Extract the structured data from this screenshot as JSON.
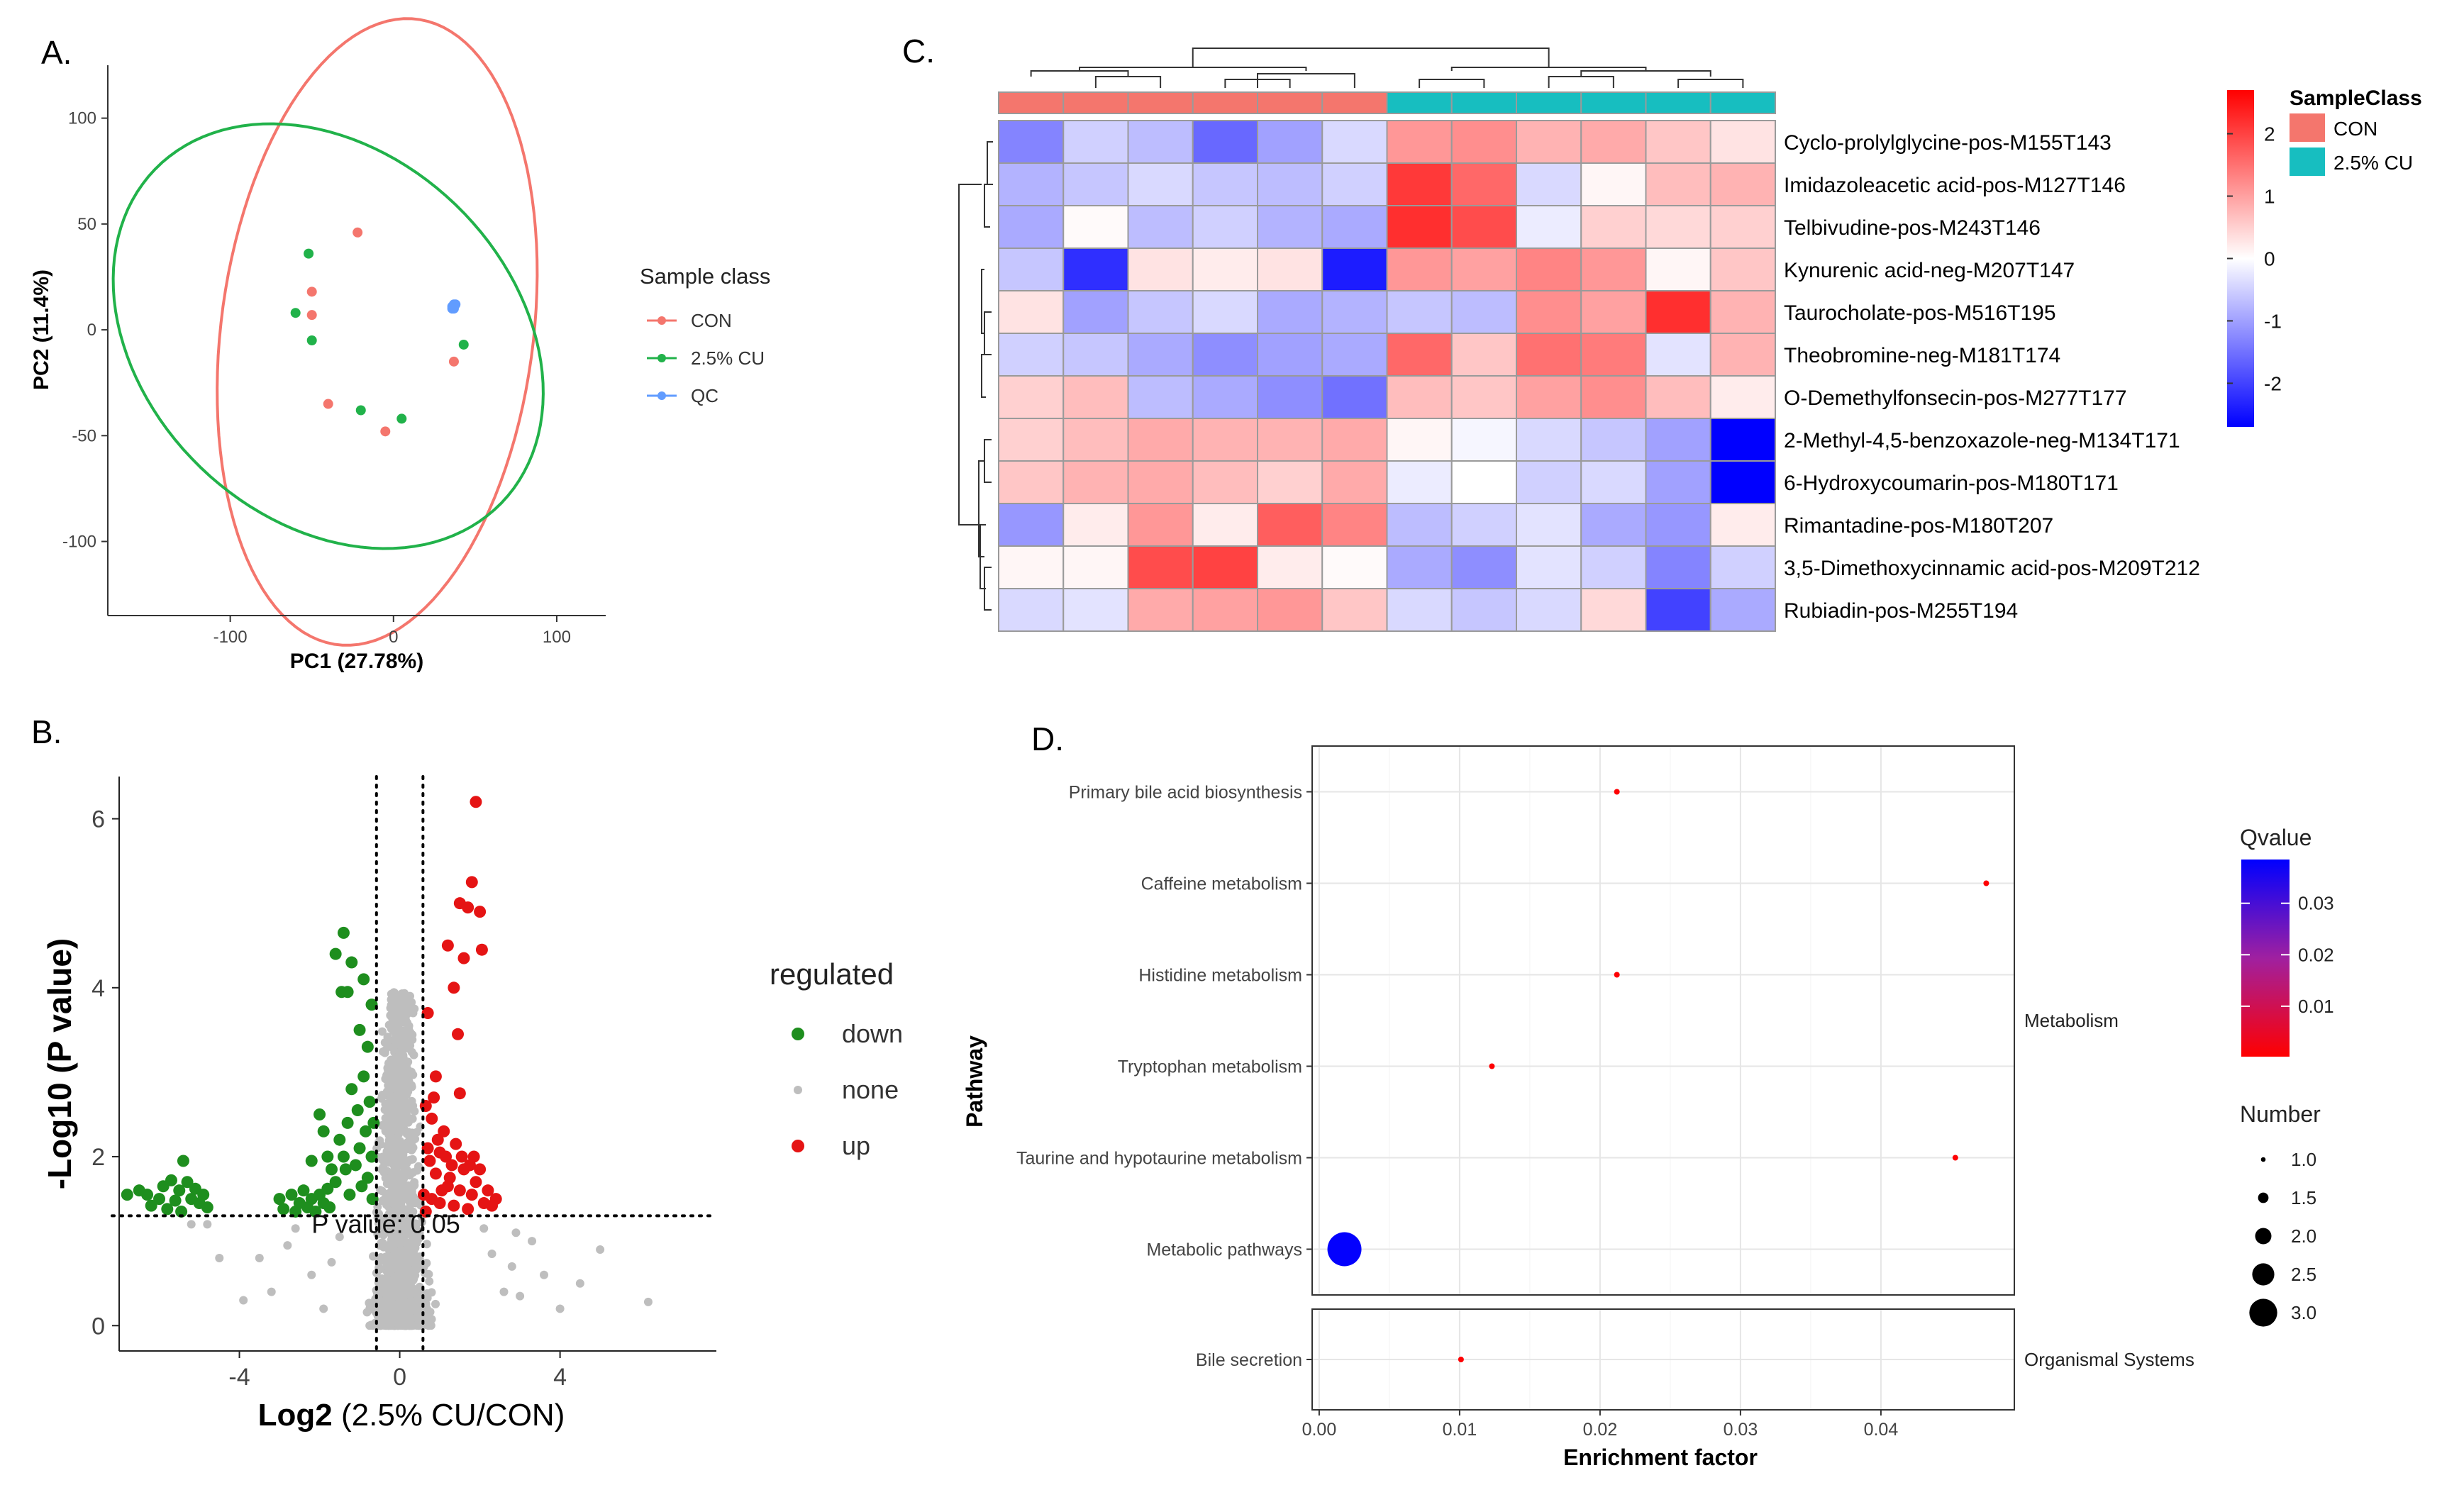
{
  "chart_data": [
    {
      "panel": "A.",
      "type": "scatter",
      "xlabel": "PC1 (27.78%)",
      "ylabel": "PC2 (11.4%)",
      "xlim": [
        -175,
        130
      ],
      "ylim": [
        -135,
        125
      ],
      "xticks": [
        -100,
        0,
        100
      ],
      "yticks": [
        100,
        50,
        0,
        -50,
        -100
      ],
      "legend_title": "Sample class",
      "series": [
        {
          "name": "CON",
          "color": "#F4766D",
          "points": [
            [
              -22,
              46
            ],
            [
              -50,
              18
            ],
            [
              -50,
              7
            ],
            [
              -40,
              -35
            ],
            [
              -5,
              -48
            ],
            [
              37,
              -15
            ]
          ]
        },
        {
          "name": "2.5% CU",
          "color": "#21B24A",
          "points": [
            [
              -52,
              36
            ],
            [
              -60,
              8
            ],
            [
              -50,
              -5
            ],
            [
              -20,
              -38
            ],
            [
              5,
              -42
            ],
            [
              43,
              -7
            ]
          ]
        },
        {
          "name": "QC",
          "color": "#619CFF",
          "points": [
            [
              36,
              11
            ],
            [
              37,
              12
            ],
            [
              38,
              12
            ],
            [
              36,
              10
            ],
            [
              37,
              10
            ]
          ]
        }
      ],
      "ellipses": [
        {
          "name": "CON",
          "color": "#F4766D",
          "cx": -10,
          "cy": -1,
          "rx": 150,
          "ry": 95,
          "angle": 78
        },
        {
          "name": "2.5% CU",
          "color": "#21B24A",
          "cx": -40,
          "cy": -3,
          "rx": 137,
          "ry": 93,
          "angle": -22
        }
      ]
    },
    {
      "panel": "B.",
      "type": "scatter",
      "subtype": "volcano",
      "xlabel_bold": "Log2",
      "xlabel_rest": " (2.5% CU/CON)",
      "ylabel": "-Log10 (P value)",
      "xlim": [
        -7,
        7.9
      ],
      "ylim": [
        -0.3,
        6.5
      ],
      "xticks": [
        -4,
        0,
        4
      ],
      "yticks": [
        0,
        2,
        4,
        6
      ],
      "vlines": [
        -0.58,
        0.58
      ],
      "hline": 1.3,
      "annotation": "P value: 0.05",
      "legend_title": "regulated",
      "colors": {
        "down": "#1E8E1E",
        "none": "#BEBEBE",
        "up": "#E51414"
      },
      "legend": [
        "down",
        "none",
        "up"
      ],
      "series": [
        {
          "name": "down",
          "points": [
            [
              -6.8,
              1.55
            ],
            [
              -6.5,
              1.6
            ],
            [
              -6.3,
              1.55
            ],
            [
              -6.2,
              1.42
            ],
            [
              -6.0,
              1.5
            ],
            [
              -5.9,
              1.65
            ],
            [
              -5.8,
              1.38
            ],
            [
              -5.7,
              1.72
            ],
            [
              -5.6,
              1.48
            ],
            [
              -5.5,
              1.6
            ],
            [
              -5.45,
              1.35
            ],
            [
              -5.4,
              1.95
            ],
            [
              -5.3,
              1.7
            ],
            [
              -5.2,
              1.5
            ],
            [
              -5.1,
              1.62
            ],
            [
              -5.0,
              1.45
            ],
            [
              -4.9,
              1.55
            ],
            [
              -4.8,
              1.4
            ],
            [
              -3.0,
              1.5
            ],
            [
              -2.9,
              1.38
            ],
            [
              -2.7,
              1.55
            ],
            [
              -2.6,
              1.35
            ],
            [
              -2.5,
              1.45
            ],
            [
              -2.4,
              1.6
            ],
            [
              -2.3,
              1.4
            ],
            [
              -2.2,
              1.5
            ],
            [
              -2.1,
              1.35
            ],
            [
              -2.0,
              1.55
            ],
            [
              -1.9,
              1.45
            ],
            [
              -1.8,
              1.62
            ],
            [
              -1.75,
              1.4
            ],
            [
              -1.6,
              1.7
            ],
            [
              -1.5,
              2.2
            ],
            [
              -1.4,
              2.0
            ],
            [
              -1.35,
              1.85
            ],
            [
              -1.3,
              2.4
            ],
            [
              -1.25,
              1.55
            ],
            [
              -1.2,
              2.8
            ],
            [
              -1.1,
              1.9
            ],
            [
              -1.05,
              2.55
            ],
            [
              -1.0,
              2.1
            ],
            [
              -0.95,
              1.65
            ],
            [
              -0.9,
              2.95
            ],
            [
              -0.85,
              2.3
            ],
            [
              -0.8,
              1.75
            ],
            [
              -0.75,
              2.65
            ],
            [
              -0.7,
              2.0
            ],
            [
              -0.68,
              1.5
            ],
            [
              -0.65,
              2.4
            ],
            [
              -1.6,
              4.4
            ],
            [
              -1.45,
              3.95
            ],
            [
              -1.3,
              3.95
            ],
            [
              -1.0,
              3.5
            ],
            [
              -0.9,
              4.1
            ],
            [
              -0.8,
              3.3
            ],
            [
              -0.7,
              3.8
            ],
            [
              -1.2,
              4.3
            ],
            [
              -2.0,
              2.5
            ],
            [
              -1.9,
              2.3
            ],
            [
              -1.8,
              2.0
            ],
            [
              -1.7,
              1.85
            ],
            [
              -2.2,
              1.95
            ],
            [
              -1.4,
              4.65
            ]
          ]
        },
        {
          "name": "up",
          "points": [
            [
              1.9,
              6.2
            ],
            [
              1.8,
              5.25
            ],
            [
              1.5,
              5.0
            ],
            [
              2.0,
              4.9
            ],
            [
              1.2,
              4.5
            ],
            [
              1.7,
              4.95
            ],
            [
              1.6,
              4.35
            ],
            [
              2.05,
              4.45
            ],
            [
              1.35,
              4.0
            ],
            [
              1.45,
              3.45
            ],
            [
              0.7,
              3.7
            ],
            [
              0.9,
              2.95
            ],
            [
              1.5,
              2.75
            ],
            [
              0.8,
              2.45
            ],
            [
              1.1,
              2.3
            ],
            [
              1.4,
              2.15
            ],
            [
              0.65,
              2.6
            ],
            [
              1.0,
              2.05
            ],
            [
              1.3,
              1.9
            ],
            [
              1.6,
              1.85
            ],
            [
              1.9,
              1.7
            ],
            [
              2.2,
              1.6
            ],
            [
              2.4,
              1.5
            ],
            [
              0.7,
              2.1
            ],
            [
              0.9,
              1.8
            ],
            [
              1.2,
              1.65
            ],
            [
              1.5,
              1.6
            ],
            [
              1.8,
              1.55
            ],
            [
              2.1,
              1.45
            ],
            [
              0.6,
              1.55
            ],
            [
              0.8,
              1.5
            ],
            [
              1.0,
              1.45
            ],
            [
              1.35,
              1.42
            ],
            [
              1.7,
              1.38
            ],
            [
              2.3,
              1.42
            ],
            [
              0.75,
              1.95
            ],
            [
              1.15,
              2.0
            ],
            [
              0.95,
              2.2
            ],
            [
              1.55,
              2.0
            ],
            [
              1.25,
              1.75
            ],
            [
              2.0,
              1.85
            ],
            [
              1.85,
              2.0
            ],
            [
              0.65,
              1.35
            ],
            [
              1.05,
              1.6
            ],
            [
              0.85,
              2.7
            ],
            [
              1.75,
              1.9
            ]
          ]
        }
      ],
      "none_cloud": {
        "count": 1400,
        "x_center": 0,
        "x_spread": 0.5,
        "y_max": 3.95
      },
      "none_scattered": [
        [
          -4.5,
          0.8
        ],
        [
          -5.2,
          1.2
        ],
        [
          -3.5,
          0.8
        ],
        [
          -3.2,
          0.4
        ],
        [
          -2.8,
          0.95
        ],
        [
          -2.6,
          1.15
        ],
        [
          -2.2,
          0.6
        ],
        [
          -1.9,
          0.2
        ],
        [
          -1.7,
          0.75
        ],
        [
          -1.5,
          1.05
        ],
        [
          2.3,
          0.85
        ],
        [
          2.6,
          0.4
        ],
        [
          2.8,
          0.7
        ],
        [
          3.0,
          0.35
        ],
        [
          3.3,
          1.0
        ],
        [
          3.6,
          0.6
        ],
        [
          4.0,
          0.2
        ],
        [
          4.5,
          0.5
        ],
        [
          5.0,
          0.9
        ],
        [
          6.2,
          0.28
        ],
        [
          -3.9,
          0.3
        ],
        [
          -4.8,
          1.2
        ],
        [
          2.1,
          1.15
        ],
        [
          2.9,
          1.1
        ]
      ]
    },
    {
      "panel": "C.",
      "type": "heatmap",
      "legend_title": "SampleClass",
      "groups": [
        {
          "name": "CON",
          "color": "#F4766D"
        },
        {
          "name": "2.5% CU",
          "color": "#17BEC0"
        }
      ],
      "column_groups": [
        "CON",
        "CON",
        "CON",
        "CON",
        "CON",
        "CON",
        "2.5% CU",
        "2.5% CU",
        "2.5% CU",
        "2.5% CU",
        "2.5% CU",
        "2.5% CU"
      ],
      "scale_ticks": [
        2,
        1,
        0,
        -1,
        -2
      ],
      "scale_range": [
        -2.7,
        2.7
      ],
      "rows": [
        {
          "label": "Cyclo-prolylglycine-pos-M155T143",
          "values": [
            -1.3,
            -0.5,
            -0.7,
            -1.6,
            -1.0,
            -0.4,
            1.1,
            1.2,
            0.8,
            0.9,
            0.6,
            0.3
          ]
        },
        {
          "label": "Imidazoleacetic acid-pos-M127T146",
          "values": [
            -0.8,
            -0.6,
            -0.4,
            -0.6,
            -0.7,
            -0.5,
            2.1,
            1.6,
            -0.4,
            0.1,
            0.7,
            0.8
          ]
        },
        {
          "label": "Telbivudine-pos-M243T146",
          "values": [
            -0.9,
            0.05,
            -0.7,
            -0.5,
            -0.8,
            -0.9,
            2.2,
            1.9,
            -0.2,
            0.5,
            0.4,
            0.5
          ]
        },
        {
          "label": "Kynurenic acid-neg-M207T147",
          "values": [
            -0.6,
            -2.2,
            0.3,
            0.2,
            0.3,
            -2.4,
            1.1,
            1.0,
            1.3,
            1.1,
            0.1,
            0.6
          ]
        },
        {
          "label": "Taurocholate-pos-M516T195",
          "values": [
            0.3,
            -1.0,
            -0.6,
            -0.4,
            -0.9,
            -0.8,
            -0.6,
            -0.7,
            1.2,
            1.0,
            2.2,
            0.8
          ]
        },
        {
          "label": "Theobromine-neg-M181T174",
          "values": [
            -0.5,
            -0.6,
            -0.9,
            -1.2,
            -1.0,
            -0.9,
            1.6,
            0.6,
            1.5,
            1.4,
            -0.3,
            0.8
          ]
        },
        {
          "label": "O-Demethylfonsecin-pos-M277T177",
          "values": [
            0.5,
            0.7,
            -0.7,
            -0.9,
            -1.2,
            -1.5,
            0.7,
            0.6,
            1.0,
            1.2,
            0.7,
            0.2
          ]
        },
        {
          "label": "2-Methyl-4,5-benzoxazole-neg-M134T171",
          "values": [
            0.5,
            0.7,
            0.9,
            0.8,
            0.8,
            0.9,
            0.1,
            -0.1,
            -0.4,
            -0.6,
            -1.0,
            -2.8
          ]
        },
        {
          "label": "6-Hydroxycoumarin-pos-M180T171",
          "values": [
            0.6,
            0.8,
            0.9,
            0.7,
            0.5,
            0.9,
            -0.2,
            0.0,
            -0.5,
            -0.4,
            -1.0,
            -2.8
          ]
        },
        {
          "label": "Rimantadine-pos-M180T207",
          "values": [
            -1.1,
            0.2,
            1.1,
            0.2,
            1.7,
            1.3,
            -0.7,
            -0.5,
            -0.3,
            -0.9,
            -1.1,
            0.2
          ]
        },
        {
          "label": "3,5-Dimethoxycinnamic acid-pos-M209T212",
          "values": [
            0.1,
            0.1,
            1.9,
            2.0,
            0.2,
            0.05,
            -0.9,
            -1.2,
            -0.3,
            -0.5,
            -1.3,
            -0.5
          ]
        },
        {
          "label": "Rubiadin-pos-M255T194",
          "values": [
            -0.4,
            -0.3,
            0.9,
            1.0,
            1.1,
            0.6,
            -0.4,
            -0.6,
            -0.4,
            0.4,
            -2.0,
            -0.9
          ]
        }
      ]
    },
    {
      "panel": "D.",
      "type": "scatter",
      "subtype": "bubble",
      "xlabel": "Enrichment factor",
      "ylabel": "Pathway",
      "xlim": [
        -0.0005,
        0.0495
      ],
      "xticks": [
        "0.00",
        "0.01",
        "0.02",
        "0.03",
        "0.04"
      ],
      "xtick_values": [
        0,
        0.01,
        0.02,
        0.03,
        0.04
      ],
      "facets": [
        {
          "name": "Metabolism",
          "pathways": [
            {
              "name": "Primary bile acid biosynthesis",
              "x": 0.0212,
              "number": 1,
              "qvalue": 0.0005
            },
            {
              "name": "Caffeine metabolism",
              "x": 0.0475,
              "number": 1,
              "qvalue": 0.0005
            },
            {
              "name": "Histidine metabolism",
              "x": 0.0212,
              "number": 1,
              "qvalue": 0.0005
            },
            {
              "name": "Tryptophan metabolism",
              "x": 0.0123,
              "number": 1,
              "qvalue": 0.0005
            },
            {
              "name": "Taurine and hypotaurine metabolism",
              "x": 0.0453,
              "number": 1,
              "qvalue": 0.0005
            },
            {
              "name": "Metabolic pathways",
              "x": 0.0018,
              "number": 3,
              "qvalue": 0.038
            }
          ]
        },
        {
          "name": "Organismal Systems",
          "pathways": [
            {
              "name": "Bile secretion",
              "x": 0.0101,
              "number": 1,
              "qvalue": 0.0005
            }
          ]
        }
      ],
      "color_legend_title": "Qvalue",
      "color_ticks": [
        "0.03",
        "0.02",
        "0.01"
      ],
      "color_tick_values": [
        0.03,
        0.02,
        0.01
      ],
      "color_range": [
        0.0002,
        0.0385
      ],
      "size_legend_title": "Number",
      "size_ticks": [
        "1.0",
        "1.5",
        "2.0",
        "2.5",
        "3.0"
      ],
      "size_tick_values": [
        1.0,
        1.5,
        2.0,
        2.5,
        3.0
      ]
    }
  ]
}
